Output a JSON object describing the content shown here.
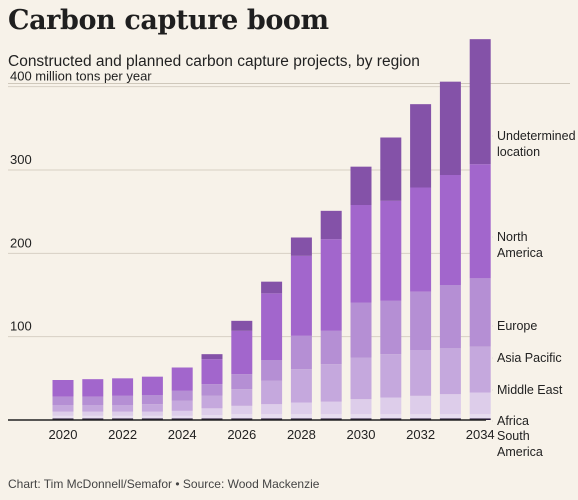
{
  "header": {
    "title": "Carbon capture boom",
    "subtitle": "Constructed and planned carbon capture projects, by region"
  },
  "footer": {
    "credit": "Chart: Tim McDonnell/Semafor • Source: Wood Mackenzie"
  },
  "chart_data": {
    "type": "bar",
    "stacked": true,
    "ylabel": "400 million tons per year",
    "ylim": [
      0,
      420
    ],
    "yticks": [
      100,
      200,
      300
    ],
    "grid": true,
    "legend_placement": "right, labels aligned to the last bar",
    "categories": [
      "2020",
      "2021",
      "2022",
      "2023",
      "2024",
      "2025",
      "2026",
      "2027",
      "2028",
      "2029",
      "2030",
      "2031",
      "2032",
      "2033",
      "2034"
    ],
    "x_tick_labels": [
      "2020",
      "2022",
      "2024",
      "2026",
      "2028",
      "2030",
      "2032",
      "2034"
    ],
    "series": [
      {
        "name": "South America",
        "color": "#2a1b3d",
        "values": [
          2,
          2,
          2,
          2,
          2,
          2,
          2,
          2,
          2,
          2,
          2,
          2,
          2,
          2,
          2
        ]
      },
      {
        "name": "Africa",
        "color": "#e7ddf0",
        "values": [
          3,
          3,
          3,
          3,
          3,
          4,
          5,
          5,
          5,
          5,
          5,
          5,
          5,
          5,
          5
        ]
      },
      {
        "name": "Middle East",
        "color": "#ddcdea",
        "values": [
          5,
          5,
          5,
          5,
          6,
          8,
          10,
          12,
          14,
          15,
          18,
          20,
          22,
          24,
          26
        ]
      },
      {
        "name": "Asia Pacific",
        "color": "#c5a8dd",
        "values": [
          8,
          8,
          8,
          9,
          12,
          15,
          20,
          28,
          40,
          45,
          50,
          52,
          55,
          55,
          55
        ]
      },
      {
        "name": "Europe",
        "color": "#b58fd4",
        "values": [
          10,
          10,
          11,
          11,
          12,
          14,
          18,
          25,
          40,
          40,
          66,
          64,
          70,
          76,
          82
        ]
      },
      {
        "name": "North America",
        "color": "#a266cc",
        "values": [
          20,
          21,
          21,
          22,
          28,
          30,
          52,
          80,
          96,
          110,
          117,
          120,
          125,
          132,
          137
        ]
      },
      {
        "name": "Undetermined location",
        "color": "#8452a8",
        "values": [
          0,
          0,
          0,
          0,
          0,
          6,
          12,
          14,
          22,
          34,
          46,
          76,
          100,
          112,
          150
        ]
      }
    ]
  }
}
